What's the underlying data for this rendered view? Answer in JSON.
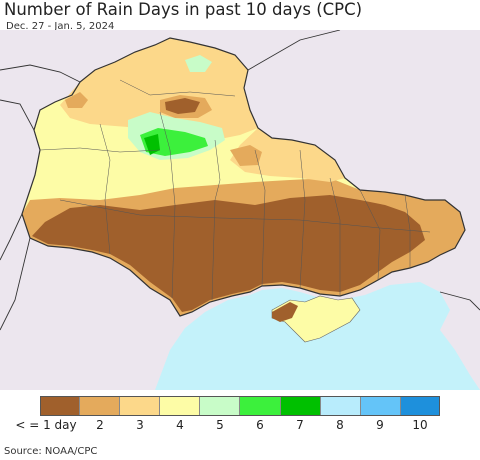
{
  "title": "Number of Rain Days in past 10 days (CPC)",
  "subtitle": "Dec. 27 - Jan. 5, 2024",
  "legend": {
    "colors": [
      "#a0602c",
      "#e4aa5c",
      "#fcd88a",
      "#fdfca6",
      "#c8fcc8",
      "#3cf03c",
      "#00c000",
      "#b8ecfc",
      "#64c4f8",
      "#1e90dc"
    ],
    "labels": [
      "< = 1 day",
      "2",
      "3",
      "4",
      "5",
      "6",
      "7",
      "8",
      "9",
      "10"
    ]
  },
  "map": {
    "sea_color": "#c4f2fa",
    "outside_color": "#ece6ee",
    "sea_label": ""
  },
  "source": "Source: NOAA/CPC"
}
